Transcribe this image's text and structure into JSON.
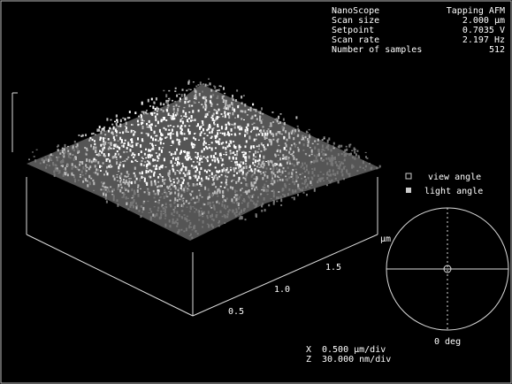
{
  "header": {
    "rows": [
      {
        "label": "NanoScope",
        "value": "Tapping AFM"
      },
      {
        "label": "Scan size",
        "value": "2.000 µm"
      },
      {
        "label": "Setpoint",
        "value": "0.7035 V"
      },
      {
        "label": "Scan rate",
        "value": "2.197 Hz"
      },
      {
        "label": "Number of samples",
        "value": "512"
      }
    ]
  },
  "axis": {
    "ticks": [
      "0.5",
      "1.0",
      "1.5"
    ],
    "unit": "µm"
  },
  "legend": {
    "view": "view angle",
    "light": "light angle"
  },
  "angle": "0 deg",
  "scale": {
    "x_label": "X",
    "x_value": "0.500 µm/div",
    "z_label": "Z",
    "z_value": "30.000 nm/div"
  }
}
